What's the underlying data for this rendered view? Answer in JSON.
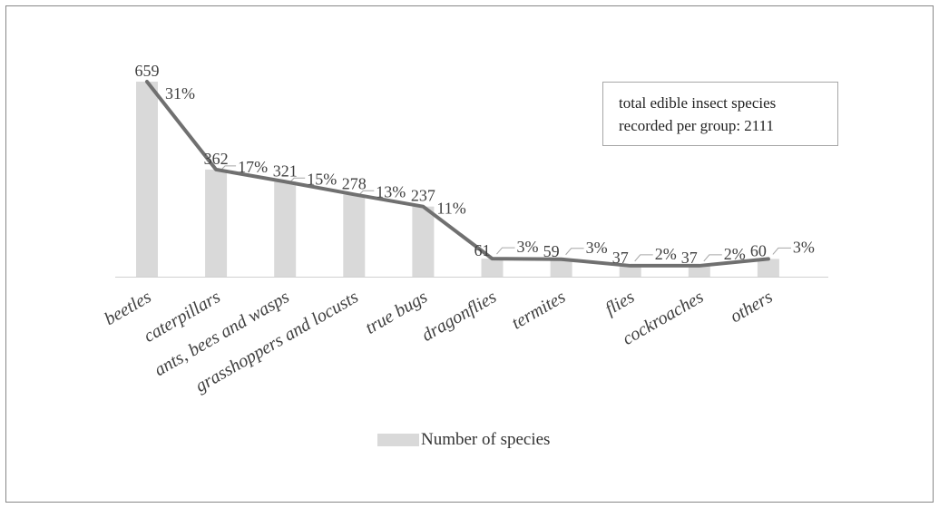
{
  "chart_data": {
    "type": "bar",
    "categories": [
      "beetles",
      "caterpillars",
      "ants, bees and wasps",
      "grasshoppers and locusts",
      "true bugs",
      "dragonflies",
      "termites",
      "flies",
      "cockroaches",
      "others"
    ],
    "series": [
      {
        "name": "Number of species",
        "values": [
          659,
          362,
          321,
          278,
          237,
          61,
          59,
          37,
          37,
          60
        ],
        "color": "#d9d9d9"
      }
    ],
    "line_overlay": {
      "values": [
        659,
        362,
        321,
        278,
        237,
        61,
        59,
        37,
        37,
        60
      ],
      "color": "#707070"
    },
    "percent_labels": [
      "31%",
      "17%",
      "15%",
      "13%",
      "11%",
      "3%",
      "3%",
      "2%",
      "2%",
      "3%"
    ],
    "value_labels": [
      "659",
      "362",
      "321",
      "278",
      "237",
      "61",
      "59",
      "37",
      "37",
      "60"
    ],
    "annotation": "total edible insect species recorded per group: 2111",
    "annotation_lines": [
      "total edible insect species",
      "recorded per group: 2111"
    ],
    "title": "",
    "xlabel": "",
    "ylabel": "",
    "ylim": [
      0,
      659
    ],
    "grid": false,
    "legend_position": "bottom"
  }
}
